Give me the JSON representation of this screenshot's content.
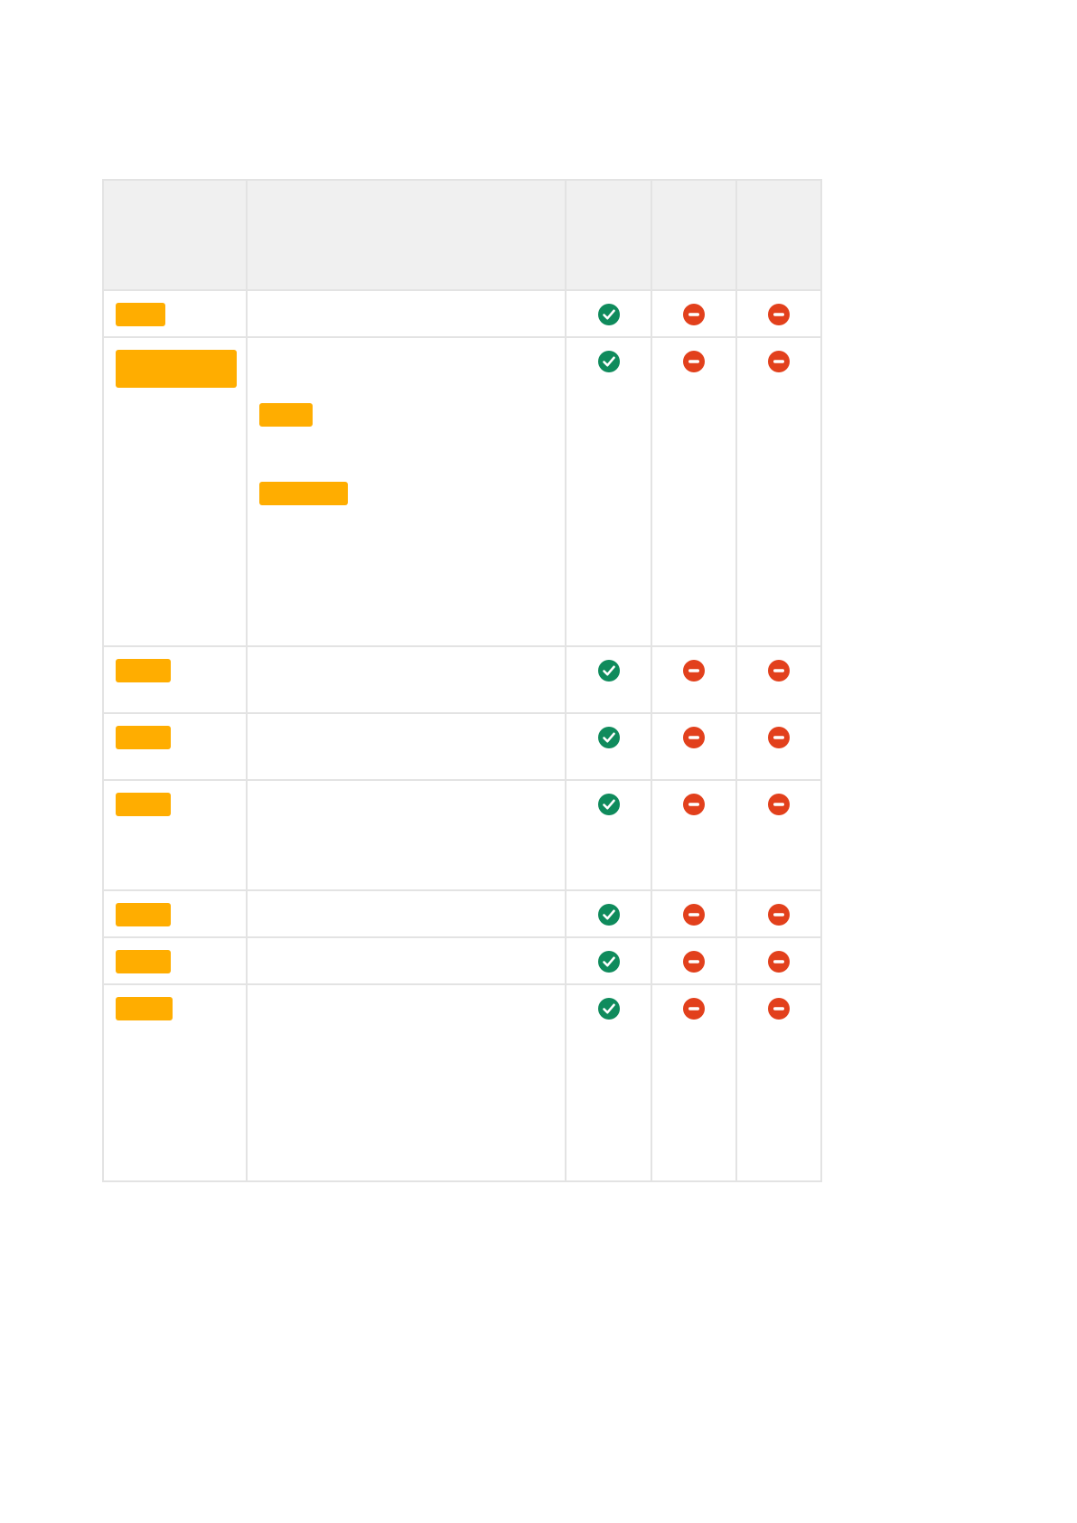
{
  "colors": {
    "header_bg": "#f0f0f0",
    "border": "#e3e3e3",
    "highlight": "#ffad00",
    "check": "#0f8b5c",
    "block": "#e2401c"
  },
  "table": {
    "header": [
      "",
      "",
      "",
      "",
      ""
    ],
    "rows": [
      {
        "flags": [
          "check-icon",
          "block-icon",
          "block-icon"
        ]
      },
      {
        "flags": [
          "check-icon",
          "block-icon",
          "block-icon"
        ]
      },
      {
        "flags": [
          "check-icon",
          "block-icon",
          "block-icon"
        ]
      },
      {
        "flags": [
          "check-icon",
          "block-icon",
          "block-icon"
        ]
      },
      {
        "flags": [
          "check-icon",
          "block-icon",
          "block-icon"
        ]
      },
      {
        "flags": [
          "check-icon",
          "block-icon",
          "block-icon"
        ]
      },
      {
        "flags": [
          "check-icon",
          "block-icon",
          "block-icon"
        ]
      },
      {
        "flags": [
          "check-icon",
          "block-icon",
          "block-icon"
        ]
      }
    ]
  }
}
